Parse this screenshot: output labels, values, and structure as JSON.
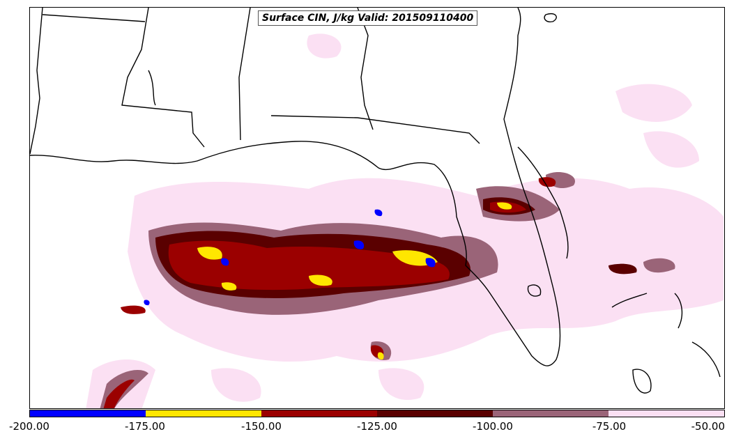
{
  "title": "Surface CIN, J/kg Valid: 201509110400",
  "colorbar": {
    "colors": [
      "#0000ff",
      "#ffe600",
      "#9b0000",
      "#5a0000",
      "#9a6478",
      "#fbe0f3"
    ],
    "ticks": [
      "-200.00",
      "-175.00",
      "-150.00",
      "-125.00",
      "-100.00",
      "-75.00",
      "-50.00"
    ]
  },
  "colors": {
    "boundary": "#000000",
    "background": "#ffffff"
  }
}
